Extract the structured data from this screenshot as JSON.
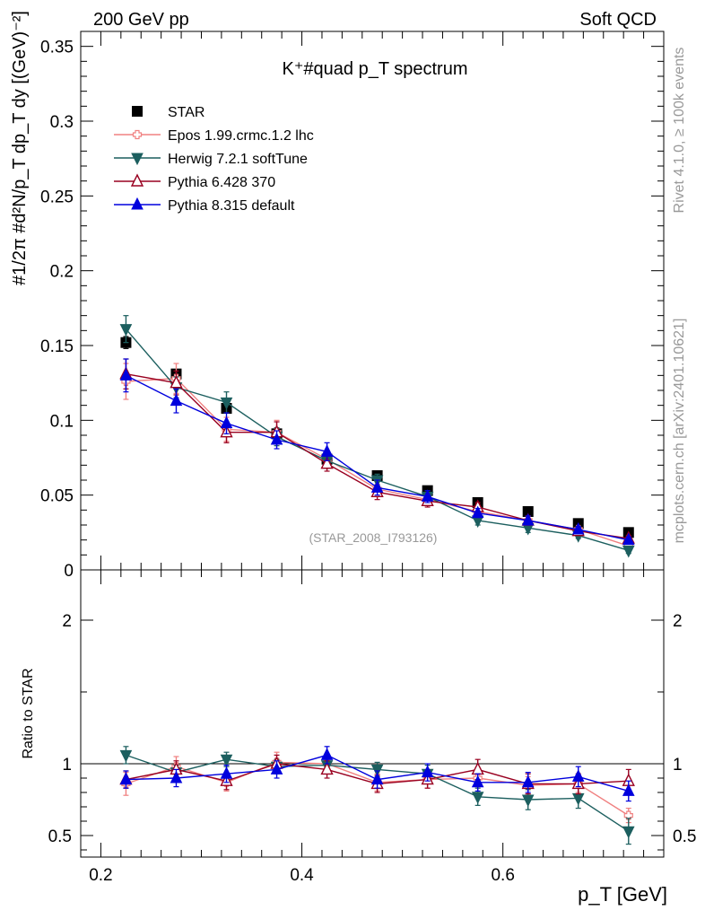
{
  "header": {
    "left": "200 GeV pp",
    "right": "Soft QCD"
  },
  "side_labels": {
    "rivet": "Rivet 4.1.0, ≥ 100k events",
    "mcplots": "mcplots.cern.ch [arXiv:2401.10621]"
  },
  "chart_data": [
    {
      "type": "scatter",
      "panel": "main",
      "title": "K⁺#quad p_T spectrum",
      "watermark": "(STAR_2008_I793126)",
      "ylabel": "#1/2π #d²N/p_T dp_T dy [(GeV)⁻²]",
      "ylim": [
        0,
        0.36
      ],
      "xlim": [
        0.18,
        0.76
      ],
      "yticks": [
        0,
        0.05,
        0.1,
        0.15,
        0.2,
        0.25,
        0.3,
        0.35
      ],
      "ytick_labels": [
        "0",
        "0.05",
        "0.1",
        "0.15",
        "0.2",
        "0.25",
        "0.3",
        "0.35"
      ],
      "x": [
        0.225,
        0.275,
        0.325,
        0.375,
        0.425,
        0.475,
        0.525,
        0.575,
        0.625,
        0.675,
        0.725
      ],
      "series": [
        {
          "name": "STAR",
          "color": "#000000",
          "marker": "square",
          "values": [
            0.152,
            0.131,
            0.108,
            0.091,
            0.074,
            0.063,
            0.053,
            0.045,
            0.039,
            0.031,
            0.025
          ],
          "errors": [
            0.004,
            0.003,
            0.003,
            0.003,
            0.002,
            0.002,
            0.002,
            0.001,
            0.001,
            0.001,
            0.001
          ]
        },
        {
          "name": "Epos 1.99.crmc.1.2 lhc",
          "color": "#f08080",
          "marker": "cross-open",
          "values": [
            0.126,
            0.128,
            0.094,
            0.092,
            0.074,
            0.054,
            0.047,
            0.039,
            0.033,
            0.027,
            0.016
          ],
          "errors": [
            0.012,
            0.01,
            0.008,
            0.008,
            0.006,
            0.005,
            0.004,
            0.003,
            0.003,
            0.002,
            0.002
          ]
        },
        {
          "name": "Herwig 7.2.1 softTune",
          "color": "#1c5f5f",
          "marker": "triangle-down",
          "values": [
            0.161,
            0.122,
            0.112,
            0.089,
            0.073,
            0.06,
            0.049,
            0.033,
            0.028,
            0.023,
            0.013
          ],
          "errors": [
            0.009,
            0.007,
            0.007,
            0.006,
            0.005,
            0.004,
            0.004,
            0.003,
            0.003,
            0.002,
            0.002
          ]
        },
        {
          "name": "Pythia 6.428 370",
          "color": "#990020",
          "marker": "triangle-up-open",
          "values": [
            0.131,
            0.125,
            0.092,
            0.092,
            0.071,
            0.052,
            0.046,
            0.042,
            0.033,
            0.026,
            0.021
          ],
          "errors": [
            0.01,
            0.008,
            0.007,
            0.007,
            0.005,
            0.005,
            0.004,
            0.003,
            0.003,
            0.002,
            0.002
          ]
        },
        {
          "name": "Pythia 8.315 default",
          "color": "#0000dd",
          "marker": "triangle-up",
          "values": [
            0.13,
            0.113,
            0.098,
            0.087,
            0.079,
            0.055,
            0.049,
            0.038,
            0.033,
            0.027,
            0.02
          ],
          "errors": [
            0.011,
            0.008,
            0.007,
            0.006,
            0.006,
            0.005,
            0.004,
            0.003,
            0.003,
            0.002,
            0.002
          ]
        }
      ],
      "legend_position": "top-left"
    },
    {
      "type": "scatter",
      "panel": "ratio",
      "ylabel": "Ratio to STAR",
      "xlabel": "p_T [GeV]",
      "ylim": [
        0.35,
        2.35
      ],
      "xlim": [
        0.18,
        0.76
      ],
      "yticks": [
        0.5,
        1,
        2
      ],
      "ytick_labels": [
        "0.5",
        "1",
        "2"
      ],
      "xticks": [
        0.2,
        0.4,
        0.6
      ],
      "xtick_labels": [
        "0.2",
        "0.4",
        "0.6"
      ],
      "x": [
        0.225,
        0.275,
        0.325,
        0.375,
        0.425,
        0.475,
        0.525,
        0.575,
        0.625,
        0.675,
        0.725
      ],
      "reference_line": 1,
      "series": [
        {
          "name": "Epos 1.99.crmc.1.2 lhc",
          "color": "#f08080",
          "marker": "cross-open",
          "values": [
            0.86,
            0.98,
            0.87,
            1.01,
            1.0,
            0.87,
            0.89,
            0.9,
            0.85,
            0.86,
            0.64
          ],
          "errors": [
            0.08,
            0.07,
            0.06,
            0.07,
            0.06,
            0.06,
            0.06,
            0.06,
            0.06,
            0.06,
            0.05
          ]
        },
        {
          "name": "Herwig 7.2.1 softTune",
          "color": "#1c5f5f",
          "marker": "triangle-down",
          "values": [
            1.06,
            0.94,
            1.03,
            0.98,
            0.99,
            0.96,
            0.93,
            0.77,
            0.75,
            0.76,
            0.53
          ],
          "errors": [
            0.06,
            0.05,
            0.05,
            0.05,
            0.05,
            0.05,
            0.06,
            0.06,
            0.07,
            0.07,
            0.09
          ]
        },
        {
          "name": "Pythia 6.428 370",
          "color": "#990020",
          "marker": "triangle-up-open",
          "values": [
            0.89,
            0.96,
            0.88,
            1.0,
            0.96,
            0.86,
            0.89,
            0.96,
            0.86,
            0.86,
            0.88
          ],
          "errors": [
            0.06,
            0.06,
            0.06,
            0.06,
            0.06,
            0.06,
            0.06,
            0.07,
            0.07,
            0.07,
            0.08
          ]
        },
        {
          "name": "Pythia 8.315 default",
          "color": "#0000dd",
          "marker": "triangle-up",
          "values": [
            0.89,
            0.9,
            0.93,
            0.96,
            1.06,
            0.89,
            0.94,
            0.87,
            0.87,
            0.91,
            0.81
          ],
          "errors": [
            0.06,
            0.06,
            0.06,
            0.06,
            0.06,
            0.06,
            0.06,
            0.06,
            0.07,
            0.07,
            0.07
          ]
        }
      ]
    }
  ]
}
